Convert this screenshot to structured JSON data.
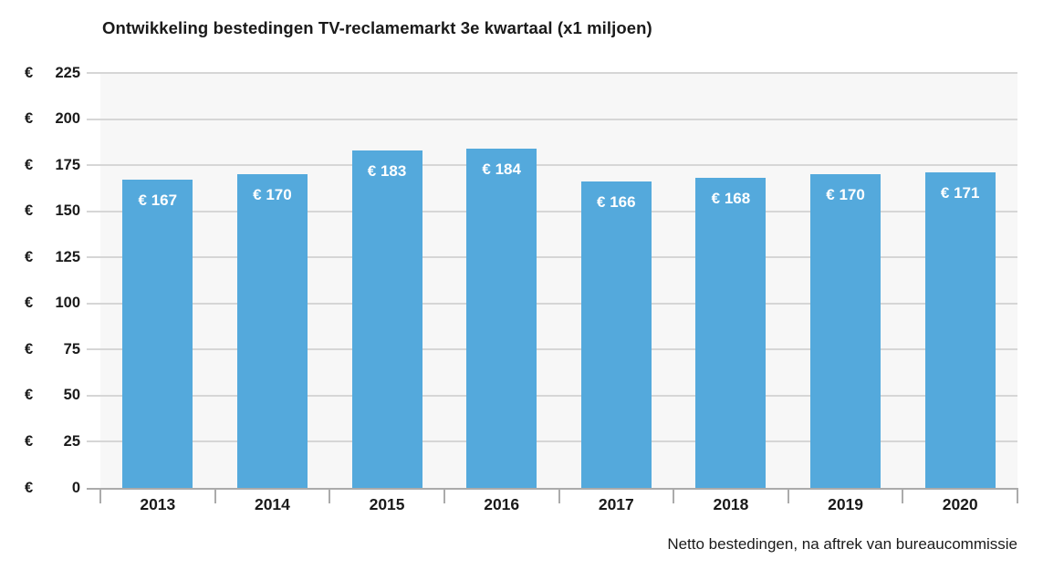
{
  "chart_data": {
    "type": "bar",
    "title": "Ontwikkeling bestedingen TV-reclamemarkt 3e kwartaal (x1 miljoen)",
    "footnote": "Netto bestedingen, na aftrek van bureaucommissie",
    "currency_symbol": "€",
    "categories": [
      "2013",
      "2014",
      "2015",
      "2016",
      "2017",
      "2018",
      "2019",
      "2020"
    ],
    "values": [
      167,
      170,
      183,
      184,
      166,
      168,
      170,
      171
    ],
    "bar_labels": [
      "€ 167",
      "€ 170",
      "€ 183",
      "€ 184",
      "€ 166",
      "€ 168",
      "€ 170",
      "€ 171"
    ],
    "yticks": [
      225,
      200,
      175,
      150,
      125,
      100,
      75,
      50,
      25,
      0
    ],
    "ylim": [
      0,
      225
    ],
    "xlabel": "",
    "ylabel": "",
    "grid": true,
    "legend": "none",
    "colors": {
      "bar": "#54a9dc",
      "plot_background": "#f7f7f7",
      "gridline": "#d6d6d6",
      "axis": "#ababab",
      "text": "#1a1a1a",
      "bar_label_text": "#ffffff"
    }
  }
}
